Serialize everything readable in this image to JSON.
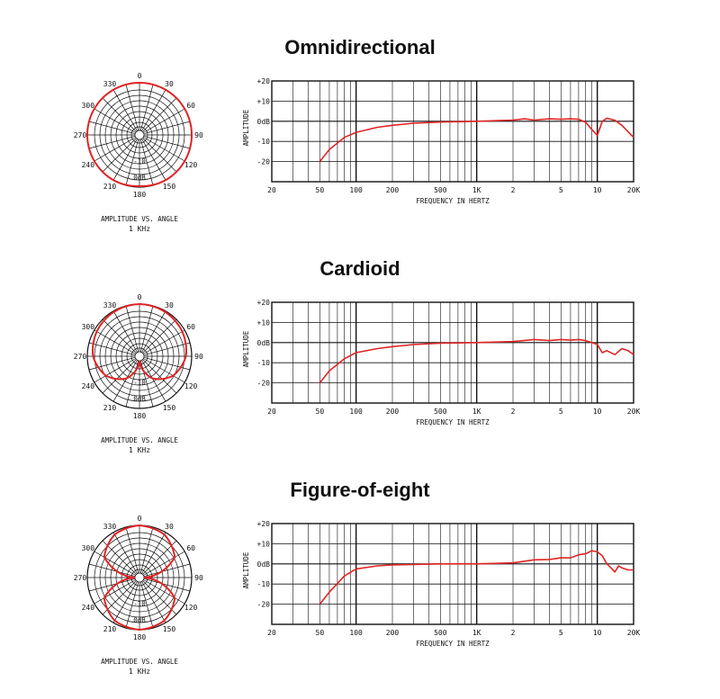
{
  "sections": [
    {
      "title": "Omnidirectional",
      "polar": {
        "angle_labels": [
          "0",
          "30",
          "60",
          "90",
          "120",
          "150",
          "180",
          "210",
          "240",
          "270",
          "300",
          "330"
        ],
        "ring_labels": [
          "0dB",
          "-10"
        ],
        "caption_line1": "AMPLITUDE VS. ANGLE",
        "caption_line2": "1 KHz"
      },
      "freq": {
        "ylabel": "AMPLITUDE",
        "xlabel": "FREQUENCY IN HERTZ",
        "y_tick_labels": [
          "+20",
          "+10",
          "0dB",
          "-10",
          "-20"
        ],
        "x_tick_labels": [
          "20",
          "50",
          "100",
          "200",
          "500",
          "1K",
          "2",
          "5",
          "10",
          "20K"
        ]
      }
    },
    {
      "title": "Cardioid",
      "polar": {
        "angle_labels": [
          "0",
          "30",
          "60",
          "90",
          "120",
          "150",
          "180",
          "210",
          "240",
          "270",
          "300",
          "330"
        ],
        "ring_labels": [
          "0dB",
          "-10"
        ],
        "caption_line1": "AMPLITUDE VS. ANGLE",
        "caption_line2": "1 KHz"
      },
      "freq": {
        "ylabel": "AMPLITUDE",
        "xlabel": "FREQUENCY IN HERTZ",
        "y_tick_labels": [
          "+20",
          "+10",
          "0dB",
          "-10",
          "-20"
        ],
        "x_tick_labels": [
          "20",
          "50",
          "100",
          "200",
          "500",
          "1K",
          "2",
          "5",
          "10",
          "20K"
        ]
      }
    },
    {
      "title": "Figure-of-eight",
      "polar": {
        "angle_labels": [
          "0",
          "30",
          "60",
          "90",
          "120",
          "150",
          "180",
          "210",
          "240",
          "270",
          "300",
          "330"
        ],
        "ring_labels": [
          "0dB",
          "-10"
        ],
        "caption_line1": "AMPLITUDE VS. ANGLE",
        "caption_line2": "1 KHz"
      },
      "freq": {
        "ylabel": "AMPLITUDE",
        "xlabel": "FREQUENCY IN HERTZ",
        "y_tick_labels": [
          "+20",
          "+10",
          "0dB",
          "-10",
          "-20"
        ],
        "x_tick_labels": [
          "20",
          "50",
          "100",
          "200",
          "500",
          "1K",
          "2",
          "5",
          "10",
          "20K"
        ]
      }
    }
  ],
  "colors": {
    "curve": "#e02424",
    "grid": "#111111",
    "text": "#111111"
  },
  "chart_data": [
    {
      "type": "line",
      "chart": "polar",
      "pattern": "omnidirectional",
      "angle_deg": [
        0,
        30,
        60,
        90,
        120,
        150,
        180,
        210,
        240,
        270,
        300,
        330,
        360
      ],
      "gain_db": [
        0,
        0,
        0,
        0,
        0,
        0,
        -0.5,
        0,
        0,
        0,
        0,
        0,
        0
      ],
      "rlim": [
        -25,
        0
      ],
      "caption": "AMPLITUDE VS. ANGLE 1 KHz"
    },
    {
      "type": "line",
      "chart": "frequency_response",
      "pattern": "omnidirectional",
      "xscale": "log",
      "xlim": [
        20,
        20000
      ],
      "ylim": [
        -30,
        20
      ],
      "xlabel": "FREQUENCY IN HERTZ",
      "ylabel": "AMPLITUDE",
      "x": [
        50,
        60,
        80,
        100,
        150,
        200,
        300,
        500,
        1000,
        2000,
        2500,
        3000,
        4000,
        5000,
        6000,
        7000,
        8000,
        9000,
        10000,
        11000,
        12000,
        14000,
        16000,
        20000
      ],
      "y": [
        -20,
        -14,
        -8,
        -5.5,
        -3,
        -2,
        -1,
        -0.4,
        0,
        0.6,
        1.2,
        0.6,
        1.2,
        1,
        1.2,
        1,
        -0.5,
        -4,
        -7,
        0,
        1.5,
        0.5,
        -2,
        -8
      ]
    },
    {
      "type": "line",
      "chart": "polar",
      "pattern": "cardioid",
      "angle_deg": [
        0,
        30,
        60,
        90,
        120,
        150,
        180,
        210,
        240,
        270,
        300,
        330,
        360
      ],
      "gain_db": [
        0,
        -0.5,
        -1.5,
        -3,
        -7,
        -14,
        -25,
        -14,
        -7,
        -3,
        -1.5,
        -0.5,
        0
      ],
      "rlim": [
        -25,
        0
      ],
      "caption": "AMPLITUDE VS. ANGLE 1 KHz"
    },
    {
      "type": "line",
      "chart": "frequency_response",
      "pattern": "cardioid",
      "xscale": "log",
      "xlim": [
        20,
        20000
      ],
      "ylim": [
        -30,
        20
      ],
      "xlabel": "FREQUENCY IN HERTZ",
      "ylabel": "AMPLITUDE",
      "x": [
        50,
        60,
        80,
        100,
        150,
        200,
        300,
        500,
        1000,
        2000,
        3000,
        4000,
        5000,
        6000,
        7000,
        8000,
        9000,
        10000,
        11000,
        12000,
        14000,
        16000,
        18000,
        20000
      ],
      "y": [
        -20,
        -14,
        -8,
        -5,
        -3,
        -2,
        -1,
        -0.3,
        0,
        0.5,
        1.5,
        1,
        1.5,
        1.2,
        1.5,
        1,
        0,
        -1,
        -5,
        -4,
        -6,
        -3,
        -4,
        -6
      ]
    },
    {
      "type": "line",
      "chart": "polar",
      "pattern": "figure-of-eight",
      "angle_deg": [
        0,
        30,
        60,
        90,
        120,
        150,
        180,
        210,
        240,
        270,
        300,
        330,
        360
      ],
      "gain_db": [
        0,
        -1.3,
        -6,
        -25,
        -6,
        -1.3,
        0,
        -1.3,
        -6,
        -25,
        -6,
        -1.3,
        0
      ],
      "rlim": [
        -25,
        0
      ],
      "caption": "AMPLITUDE VS. ANGLE 1 KHz"
    },
    {
      "type": "line",
      "chart": "frequency_response",
      "pattern": "figure-of-eight",
      "xscale": "log",
      "xlim": [
        20,
        20000
      ],
      "ylim": [
        -30,
        20
      ],
      "xlabel": "FREQUENCY IN HERTZ",
      "ylabel": "AMPLITUDE",
      "x": [
        50,
        60,
        80,
        100,
        150,
        200,
        300,
        500,
        1000,
        2000,
        3000,
        4000,
        5000,
        6000,
        7000,
        8000,
        9000,
        10000,
        11000,
        12000,
        13000,
        14000,
        15000,
        16000,
        18000,
        20000
      ],
      "y": [
        -20,
        -14,
        -6,
        -2.5,
        -1,
        -0.5,
        -0.3,
        0,
        0,
        0.5,
        2,
        2.2,
        3,
        3,
        4.5,
        5,
        6.5,
        6,
        4,
        0,
        -2,
        -4,
        -1,
        -2,
        -3,
        -3
      ]
    }
  ]
}
